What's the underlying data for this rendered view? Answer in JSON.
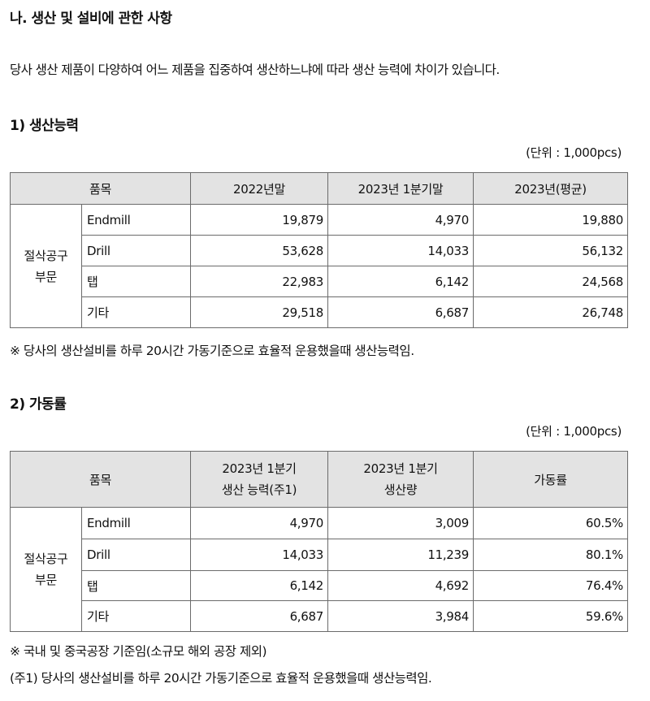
{
  "section_title": "나. 생산 및 설비에 관한 사항",
  "intro": "당사 생산 제품이 다양하여 어느 제품을 집중하여 생산하느냐에 따라 생산 능력에 차이가 있습니다.",
  "capacity": {
    "title": "1) 생산능력",
    "unit": "(단위 : 1,000pcs)",
    "headers": [
      "품목",
      "2022년말",
      "2023년 1분기말",
      "2023년(평균)"
    ],
    "group_label_line1": "절삭공구",
    "group_label_line2": "부문",
    "rows": [
      {
        "name": "Endmill",
        "values": [
          "19,879",
          "4,970",
          "19,880"
        ]
      },
      {
        "name": "Drill",
        "values": [
          "53,628",
          "14,033",
          "56,132"
        ]
      },
      {
        "name": "탭",
        "values": [
          "22,983",
          "6,142",
          "24,568"
        ]
      },
      {
        "name": "기타",
        "values": [
          "29,518",
          "6,687",
          "26,748"
        ]
      }
    ],
    "note": "※ 당사의 생산설비를 하루 20시간 가동기준으로 효율적 운용했을때 생산능력임."
  },
  "utilization": {
    "title": "2) 가동률",
    "unit": "(단위 : 1,000pcs)",
    "header_item": "품목",
    "header_capacity_line1": "2023년 1분기",
    "header_capacity_line2": "생산 능력(주1)",
    "header_output_line1": "2023년 1분기",
    "header_output_line2": "생산량",
    "header_rate": "가동률",
    "group_label_line1": "절삭공구",
    "group_label_line2": "부문",
    "rows": [
      {
        "name": "Endmill",
        "values": [
          "4,970",
          "3,009",
          "60.5%"
        ]
      },
      {
        "name": "Drill",
        "values": [
          "14,033",
          "11,239",
          "80.1%"
        ]
      },
      {
        "name": "탭",
        "values": [
          "6,142",
          "4,692",
          "76.4%"
        ]
      },
      {
        "name": "기타",
        "values": [
          "6,687",
          "3,984",
          "59.6%"
        ]
      }
    ],
    "note1": "※ 국내 및 중국공장 기준임(소규모 해외 공장 제외)",
    "note2": "(주1) 당사의 생산설비를 하루 20시간 가동기준으로 효율적 운용했을때 생산능력임."
  }
}
